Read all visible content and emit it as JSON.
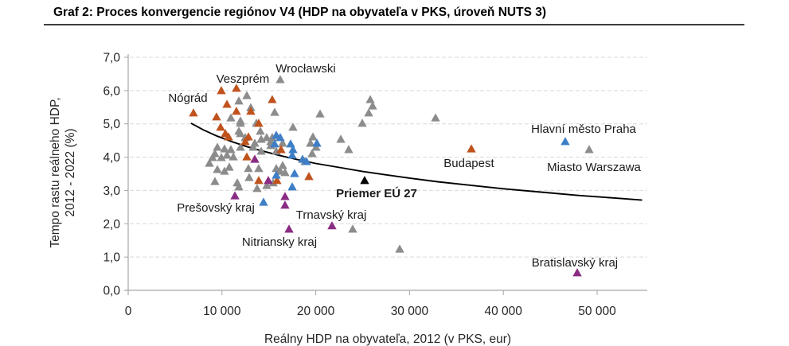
{
  "title": "Graf 2: Proces konvergencie regiónov V4 (HDP na obyvateľa v PKS, úroveň NUTS 3)",
  "chart_data": {
    "type": "scatter",
    "title": "Graf 2: Proces konvergencie regiónov V4 (HDP na obyvateľa v PKS, úroveň NUTS 3)",
    "xlabel": "Reálny HDP na obyvateľa, 2012 (v PKS, eur)",
    "ylabel_lines": [
      "Tempo rastu reálneho HDP,",
      "2012 - 2022 (%)"
    ],
    "xlim": [
      0,
      55500
    ],
    "ylim": [
      0,
      7
    ],
    "grid": "dashed-horizontal",
    "legend": "none",
    "marker": "triangle-up",
    "x_ticks": [
      {
        "value": 0,
        "label": "0"
      },
      {
        "value": 10000,
        "label": "10 000"
      },
      {
        "value": 20000,
        "label": "20 000"
      },
      {
        "value": 30000,
        "label": "30 000"
      },
      {
        "value": 40000,
        "label": "40 000"
      },
      {
        "value": 50000,
        "label": "50 000"
      }
    ],
    "y_ticks": [
      {
        "value": 0,
        "label": "0,0"
      },
      {
        "value": 1,
        "label": "1,0"
      },
      {
        "value": 2,
        "label": "2,0"
      },
      {
        "value": 3,
        "label": "3,0"
      },
      {
        "value": 4,
        "label": "4,0"
      },
      {
        "value": 5,
        "label": "5,0"
      },
      {
        "value": 6,
        "label": "6,0"
      },
      {
        "value": 7,
        "label": "7,0"
      }
    ],
    "series": [
      {
        "name": "gray",
        "color": "#8c8c8c",
        "points": [
          [
            16210,
            6.33
          ],
          [
            25810,
            5.73
          ],
          [
            26060,
            5.54
          ],
          [
            25640,
            5.33
          ],
          [
            24960,
            5.02
          ],
          [
            32770,
            5.18
          ],
          [
            49150,
            4.23
          ],
          [
            20460,
            5.3
          ],
          [
            15620,
            5.35
          ],
          [
            12650,
            5.85
          ],
          [
            13070,
            5.49
          ],
          [
            11800,
            5.69
          ],
          [
            11970,
            5.09
          ],
          [
            10950,
            5.18
          ],
          [
            13670,
            5.02
          ],
          [
            11970,
            4.71
          ],
          [
            14090,
            4.78
          ],
          [
            14770,
            4.59
          ],
          [
            15360,
            4.59
          ],
          [
            13500,
            4.42
          ],
          [
            14180,
            4.54
          ],
          [
            14180,
            4.18
          ],
          [
            9510,
            4.3
          ],
          [
            10270,
            4.25
          ],
          [
            10950,
            4.23
          ],
          [
            10530,
            4.06
          ],
          [
            11210,
            4.01
          ],
          [
            9930,
            3.99
          ],
          [
            8660,
            3.82
          ],
          [
            9250,
            4.11
          ],
          [
            11970,
            4.3
          ],
          [
            12480,
            4.59
          ],
          [
            13330,
            4.3
          ],
          [
            15200,
            4.35
          ],
          [
            16470,
            4.42
          ],
          [
            15790,
            4.18
          ],
          [
            11970,
            5.02
          ],
          [
            11800,
            4.78
          ],
          [
            12820,
            3.66
          ],
          [
            10270,
            3.58
          ],
          [
            9250,
            3.27
          ],
          [
            11630,
            3.23
          ],
          [
            15450,
            3.23
          ],
          [
            13920,
            3.66
          ],
          [
            15790,
            3.66
          ],
          [
            16470,
            3.75
          ],
          [
            18850,
            3.87
          ],
          [
            11800,
            3.11
          ],
          [
            13750,
            3.06
          ],
          [
            19440,
            4.42
          ],
          [
            20030,
            4.3
          ],
          [
            19610,
            4.11
          ],
          [
            19700,
            4.61
          ],
          [
            22670,
            4.54
          ],
          [
            23510,
            4.23
          ],
          [
            15200,
            4.47
          ],
          [
            16210,
            3.58
          ],
          [
            16720,
            3.54
          ],
          [
            14770,
            3.15
          ],
          [
            12900,
            3.39
          ],
          [
            23940,
            1.84
          ],
          [
            28950,
            1.24
          ],
          [
            17570,
            4.9
          ],
          [
            10780,
            3.7
          ],
          [
            9000,
            3.99
          ],
          [
            9510,
            3.63
          ]
        ]
      },
      {
        "name": "orange",
        "color": "#c0531d",
        "points": [
          [
            6960,
            5.33
          ],
          [
            9930,
            6.0
          ],
          [
            11540,
            6.07
          ],
          [
            10530,
            5.59
          ],
          [
            11540,
            5.38
          ],
          [
            13070,
            5.38
          ],
          [
            15360,
            5.73
          ],
          [
            9420,
            5.21
          ],
          [
            9850,
            4.9
          ],
          [
            13920,
            5.02
          ],
          [
            10700,
            4.61
          ],
          [
            12820,
            4.61
          ],
          [
            10360,
            4.71
          ],
          [
            12480,
            4.47
          ],
          [
            12650,
            4.01
          ],
          [
            13920,
            3.3
          ],
          [
            15870,
            3.3
          ],
          [
            16300,
            4.23
          ],
          [
            19270,
            3.42
          ],
          [
            36590,
            4.25
          ]
        ]
      },
      {
        "name": "blue",
        "color": "#3e7ec6",
        "points": [
          [
            46600,
            4.47
          ],
          [
            15790,
            4.66
          ],
          [
            16210,
            4.59
          ],
          [
            15620,
            4.4
          ],
          [
            17320,
            4.4
          ],
          [
            17570,
            4.23
          ],
          [
            20120,
            4.42
          ],
          [
            18590,
            3.94
          ],
          [
            19020,
            3.87
          ],
          [
            15790,
            3.46
          ],
          [
            17740,
            3.51
          ],
          [
            17490,
            3.11
          ],
          [
            14430,
            2.65
          ],
          [
            17490,
            4.06
          ]
        ]
      },
      {
        "name": "purple",
        "color": "#8a2c84",
        "points": [
          [
            47880,
            0.53
          ],
          [
            21730,
            1.94
          ],
          [
            17150,
            1.84
          ],
          [
            11380,
            2.84
          ],
          [
            13500,
            3.94
          ],
          [
            14940,
            3.3
          ],
          [
            16720,
            2.82
          ],
          [
            16720,
            2.56
          ]
        ]
      },
      {
        "name": "eu27-average",
        "color": "#000000",
        "points": [
          [
            25210,
            3.3
          ]
        ]
      }
    ],
    "trend_curve": {
      "color": "#000000",
      "points": [
        [
          6700,
          5.02
        ],
        [
          8000,
          4.82
        ],
        [
          9500,
          4.63
        ],
        [
          11000,
          4.47
        ],
        [
          12500,
          4.33
        ],
        [
          14000,
          4.21
        ],
        [
          16000,
          4.06
        ],
        [
          18000,
          3.93
        ],
        [
          20000,
          3.81
        ],
        [
          22500,
          3.69
        ],
        [
          25000,
          3.57
        ],
        [
          27500,
          3.47
        ],
        [
          30000,
          3.37
        ],
        [
          33000,
          3.26
        ],
        [
          36000,
          3.17
        ],
        [
          40000,
          3.05
        ],
        [
          44000,
          2.95
        ],
        [
          48000,
          2.85
        ],
        [
          52000,
          2.77
        ],
        [
          54800,
          2.71
        ]
      ]
    },
    "annotations": [
      {
        "text": "Nógrád",
        "x": 6370,
        "y": 5.78,
        "bold": false
      },
      {
        "text": "Veszprém",
        "x": 12220,
        "y": 6.35,
        "bold": false
      },
      {
        "text": "Wrocławski",
        "x": 18930,
        "y": 6.67,
        "bold": false
      },
      {
        "text": "Hlavní město Praha",
        "x": 48560,
        "y": 4.85,
        "bold": false
      },
      {
        "text": "Miasto Warszawa",
        "x": 49660,
        "y": 3.7,
        "bold": false
      },
      {
        "text": "Budapest",
        "x": 36330,
        "y": 3.82,
        "bold": false
      },
      {
        "text": "Priemer EÚ 27",
        "x": 26490,
        "y": 2.91,
        "bold": true
      },
      {
        "text": "Prešovský kraj",
        "x": 9340,
        "y": 2.48,
        "bold": false
      },
      {
        "text": "Trnavský kraj",
        "x": 21650,
        "y": 2.27,
        "bold": false
      },
      {
        "text": "Nitriansky kraj",
        "x": 16130,
        "y": 1.46,
        "bold": false
      },
      {
        "text": "Bratislavský kraj",
        "x": 47620,
        "y": 0.84,
        "bold": false
      }
    ],
    "colors": {
      "gridline": "#d9d9d9",
      "axis": "#a6a6a6",
      "tick_text": "#262626",
      "annotation_text": "#1a1a1a"
    }
  }
}
